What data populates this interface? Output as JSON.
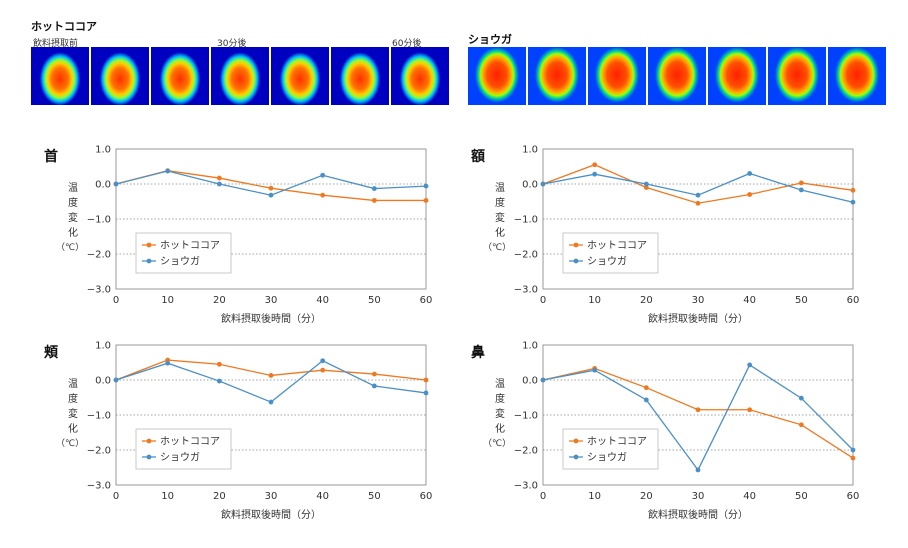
{
  "thermal": {
    "cocoa": {
      "heading": "ホットココア",
      "labels": [
        "飲料摂取前",
        "30分後",
        "60分後"
      ]
    },
    "ginger": {
      "heading": "ショウガ"
    }
  },
  "chart_data": [
    {
      "type": "line",
      "title": "首",
      "ylabel": "温度変化（℃）",
      "xlabel": "飲料摂取後時間（分）",
      "x": [
        0,
        10,
        20,
        30,
        40,
        50,
        60
      ],
      "xlim": [
        0,
        60
      ],
      "ylim": [
        -3.0,
        1.0
      ],
      "yticks": [
        "1.0",
        "0.0",
        "−1.0",
        "−2.0",
        "−3.0"
      ],
      "grid": true,
      "legend": "bottom-left",
      "series": [
        {
          "name": "ホットココア",
          "color": "#f07820",
          "values": [
            0.0,
            0.38,
            0.17,
            -0.12,
            -0.32,
            -0.47,
            -0.47
          ]
        },
        {
          "name": "ショウガ",
          "color": "#4a90c8",
          "values": [
            0.0,
            0.37,
            0.0,
            -0.32,
            0.25,
            -0.13,
            -0.06
          ]
        }
      ]
    },
    {
      "type": "line",
      "title": "額",
      "ylabel": "温度変化（℃）",
      "xlabel": "飲料摂取後時間（分）",
      "x": [
        0,
        10,
        20,
        30,
        40,
        50,
        60
      ],
      "xlim": [
        0,
        60
      ],
      "ylim": [
        -3.0,
        1.0
      ],
      "yticks": [
        "1.0",
        "0.0",
        "−1.0",
        "−2.0",
        "−3.0"
      ],
      "grid": true,
      "legend": "bottom-left",
      "series": [
        {
          "name": "ホットココア",
          "color": "#f07820",
          "values": [
            0.0,
            0.55,
            -0.1,
            -0.55,
            -0.3,
            0.03,
            -0.18
          ]
        },
        {
          "name": "ショウガ",
          "color": "#4a90c8",
          "values": [
            0.0,
            0.28,
            0.0,
            -0.32,
            0.3,
            -0.17,
            -0.52
          ]
        }
      ]
    },
    {
      "type": "line",
      "title": "頬",
      "ylabel": "温度変化（℃）",
      "xlabel": "飲料摂取後時間（分）",
      "x": [
        0,
        10,
        20,
        30,
        40,
        50,
        60
      ],
      "xlim": [
        0,
        60
      ],
      "ylim": [
        -3.0,
        1.0
      ],
      "yticks": [
        "1.0",
        "0.0",
        "−1.0",
        "−2.0",
        "−3.0"
      ],
      "grid": true,
      "legend": "bottom-left",
      "series": [
        {
          "name": "ホットココア",
          "color": "#f07820",
          "values": [
            0.0,
            0.57,
            0.45,
            0.13,
            0.28,
            0.17,
            0.0
          ]
        },
        {
          "name": "ショウガ",
          "color": "#4a90c8",
          "values": [
            0.0,
            0.48,
            -0.03,
            -0.63,
            0.55,
            -0.17,
            -0.37
          ]
        }
      ]
    },
    {
      "type": "line",
      "title": "鼻",
      "ylabel": "温度変化（℃）",
      "xlabel": "飲料摂取後時間（分）",
      "x": [
        0,
        10,
        20,
        30,
        40,
        50,
        60
      ],
      "xlim": [
        0,
        60
      ],
      "ylim": [
        -3.0,
        1.0
      ],
      "yticks": [
        "1.0",
        "0.0",
        "−1.0",
        "−2.0",
        "−3.0"
      ],
      "grid": true,
      "legend": "bottom-left",
      "series": [
        {
          "name": "ホットココア",
          "color": "#f07820",
          "values": [
            0.0,
            0.33,
            -0.22,
            -0.85,
            -0.85,
            -1.28,
            -2.23
          ]
        },
        {
          "name": "ショウガ",
          "color": "#4a90c8",
          "values": [
            0.0,
            0.28,
            -0.57,
            -2.57,
            0.43,
            -0.52,
            -2.0
          ]
        }
      ]
    }
  ]
}
